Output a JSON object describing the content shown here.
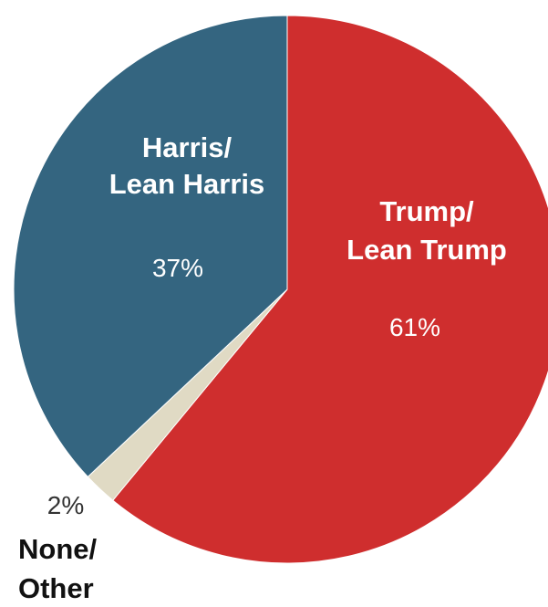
{
  "chart_data": {
    "type": "pie",
    "slices": [
      {
        "name": "Trump/ Lean Trump",
        "label_lines": [
          "Trump/",
          "Lean Trump"
        ],
        "value": 61,
        "value_label": "61%",
        "color": "#CF2E2E"
      },
      {
        "name": "None/ Other",
        "label_lines": [
          "None/",
          "Other"
        ],
        "value": 2,
        "value_label": "2%",
        "color": "#E0DAC4"
      },
      {
        "name": "Harris/ Lean Harris",
        "label_lines": [
          "Harris/",
          "Lean Harris"
        ],
        "value": 37,
        "value_label": "37%",
        "color": "#346580"
      }
    ]
  }
}
